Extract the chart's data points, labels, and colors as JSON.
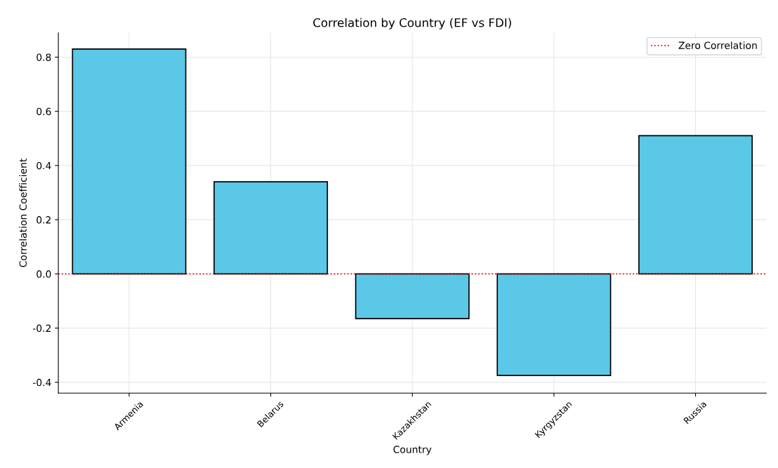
{
  "chart_data": {
    "type": "bar",
    "title": "Correlation by Country (EF vs FDI)",
    "xlabel": "Country",
    "ylabel": "Correlation Coefficient",
    "categories": [
      "Armenia",
      "Belarus",
      "Kazakhstan",
      "Kyrgyzstan",
      "Russia"
    ],
    "values": [
      0.83,
      0.34,
      -0.165,
      -0.375,
      0.51
    ],
    "color": "#5bc8e8",
    "ylim": [
      -0.44,
      0.89
    ],
    "yticks": [
      {
        "value": -0.4,
        "label": "-0.4"
      },
      {
        "value": -0.2,
        "label": "-0.2"
      },
      {
        "value": 0.0,
        "label": "0.0"
      },
      {
        "value": 0.2,
        "label": "0.2"
      },
      {
        "value": 0.4,
        "label": "0.4"
      },
      {
        "value": 0.6,
        "label": "0.6"
      },
      {
        "value": 0.8,
        "label": "0.8"
      }
    ],
    "ref_lines": [
      {
        "axis": "y",
        "value": 0,
        "label": "Zero Correlation",
        "color": "#ff0000",
        "line_style": "dotted"
      }
    ],
    "grid": true,
    "legend": "top right"
  }
}
